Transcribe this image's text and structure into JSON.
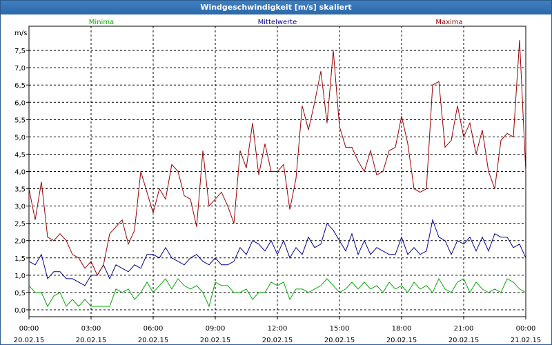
{
  "window": {
    "title": "Windgeschwindigkeit [m/s] skaliert"
  },
  "chart_data": {
    "type": "line",
    "title": "Windgeschwindigkeit [m/s] skaliert",
    "ylabel": "m/s",
    "ylim": [
      -0.2,
      8.2
    ],
    "yticks": [
      "0,0",
      "0,5",
      "1,0",
      "1,5",
      "2,0",
      "2,5",
      "3,0",
      "3,5",
      "4,0",
      "4,5",
      "5,0",
      "5,5",
      "6,0",
      "6,5",
      "7,0",
      "7,5"
    ],
    "ytick_values": [
      0,
      0.5,
      1,
      1.5,
      2,
      2.5,
      3,
      3.5,
      4,
      4.5,
      5,
      5.5,
      6,
      6.5,
      7,
      7.5
    ],
    "xlim": [
      0,
      24
    ],
    "xticks": [
      {
        "h": 0,
        "time": "00:00",
        "date": "20.02.15"
      },
      {
        "h": 3,
        "time": "03:00",
        "date": "20.02.15"
      },
      {
        "h": 6,
        "time": "06:00",
        "date": "20.02.15"
      },
      {
        "h": 9,
        "time": "09:00",
        "date": "20.02.15"
      },
      {
        "h": 12,
        "time": "12:00",
        "date": "20.02.15"
      },
      {
        "h": 15,
        "time": "15:00",
        "date": "20.02.15"
      },
      {
        "h": 18,
        "time": "18:00",
        "date": "20.02.15"
      },
      {
        "h": 21,
        "time": "21:00",
        "date": "20.02.15"
      },
      {
        "h": 24,
        "time": "00:00",
        "date": "21.02.15"
      }
    ],
    "grid": true,
    "legend_position": "top",
    "series": [
      {
        "name": "Minima",
        "color": "#00aa00",
        "x": [
          0,
          0.3,
          0.6,
          0.9,
          1.2,
          1.5,
          1.8,
          2.1,
          2.4,
          2.7,
          3.0,
          3.3,
          3.6,
          3.9,
          4.2,
          4.5,
          4.8,
          5.1,
          5.4,
          5.7,
          6.0,
          6.3,
          6.6,
          6.9,
          7.2,
          7.5,
          7.8,
          8.1,
          8.4,
          8.7,
          9.0,
          9.3,
          9.6,
          9.9,
          10.2,
          10.5,
          10.8,
          11.1,
          11.4,
          11.7,
          12.0,
          12.3,
          12.6,
          12.9,
          13.2,
          13.5,
          13.8,
          14.1,
          14.4,
          14.7,
          15.0,
          15.3,
          15.6,
          15.9,
          16.2,
          16.5,
          16.8,
          17.1,
          17.4,
          17.7,
          18.0,
          18.3,
          18.6,
          18.9,
          19.2,
          19.5,
          19.8,
          20.1,
          20.4,
          20.7,
          21.0,
          21.3,
          21.6,
          21.9,
          22.2,
          22.5,
          22.8,
          23.1,
          23.4,
          23.7,
          24.0
        ],
        "values": [
          0.7,
          0.5,
          0.5,
          0.1,
          0.4,
          0.5,
          0.1,
          0.3,
          0.1,
          0.3,
          0.1,
          0.1,
          0.1,
          0.1,
          0.6,
          0.5,
          0.6,
          0.3,
          0.5,
          0.8,
          0.5,
          0.7,
          0.9,
          0.6,
          0.9,
          0.7,
          0.6,
          0.7,
          0.5,
          0.1,
          0.8,
          0.7,
          0.7,
          0.5,
          0.5,
          0.6,
          0.3,
          0.5,
          0.5,
          0.8,
          0.7,
          0.8,
          0.3,
          0.6,
          0.6,
          0.5,
          0.6,
          0.7,
          0.9,
          0.7,
          0.5,
          0.6,
          0.8,
          0.6,
          0.8,
          0.6,
          0.7,
          0.5,
          0.8,
          0.6,
          0.7,
          0.5,
          0.8,
          0.6,
          0.7,
          0.5,
          0.9,
          0.6,
          0.5,
          0.8,
          0.9,
          0.5,
          0.8,
          0.6,
          0.5,
          0.6,
          0.5,
          0.9,
          0.8,
          0.6,
          0.5
        ]
      },
      {
        "name": "Mittelwerte",
        "color": "#00008b",
        "x": [
          0,
          0.3,
          0.6,
          0.9,
          1.2,
          1.5,
          1.8,
          2.1,
          2.4,
          2.7,
          3.0,
          3.3,
          3.6,
          3.9,
          4.2,
          4.5,
          4.8,
          5.1,
          5.4,
          5.7,
          6.0,
          6.3,
          6.6,
          6.9,
          7.2,
          7.5,
          7.8,
          8.1,
          8.4,
          8.7,
          9.0,
          9.3,
          9.6,
          9.9,
          10.2,
          10.5,
          10.8,
          11.1,
          11.4,
          11.7,
          12.0,
          12.3,
          12.6,
          12.9,
          13.2,
          13.5,
          13.8,
          14.1,
          14.4,
          14.7,
          15.0,
          15.3,
          15.6,
          15.9,
          16.2,
          16.5,
          16.8,
          17.1,
          17.4,
          17.7,
          18.0,
          18.3,
          18.6,
          18.9,
          19.2,
          19.5,
          19.8,
          20.1,
          20.4,
          20.7,
          21.0,
          21.3,
          21.6,
          21.9,
          22.2,
          22.5,
          22.8,
          23.1,
          23.4,
          23.7,
          24.0
        ],
        "values": [
          1.4,
          1.3,
          1.6,
          0.9,
          1.1,
          1.1,
          0.9,
          0.9,
          0.8,
          0.7,
          1.0,
          1.0,
          1.3,
          0.9,
          1.3,
          1.2,
          1.1,
          1.3,
          1.2,
          1.6,
          1.6,
          1.5,
          1.8,
          1.5,
          1.4,
          1.3,
          1.5,
          1.6,
          1.4,
          1.3,
          1.5,
          1.3,
          1.3,
          1.4,
          1.8,
          1.6,
          2.0,
          1.9,
          1.7,
          2.0,
          1.6,
          2.0,
          1.5,
          1.8,
          1.6,
          2.1,
          1.8,
          1.9,
          2.5,
          2.3,
          2.0,
          1.7,
          2.2,
          1.6,
          2.0,
          1.6,
          1.8,
          1.7,
          1.6,
          1.6,
          2.1,
          1.6,
          1.8,
          1.6,
          1.7,
          2.6,
          2.1,
          2.0,
          1.6,
          2.0,
          1.9,
          2.1,
          1.7,
          2.1,
          1.7,
          2.2,
          2.1,
          2.1,
          1.8,
          1.9,
          1.5
        ]
      },
      {
        "name": "Maxima",
        "color": "#990000",
        "x": [
          0,
          0.3,
          0.6,
          0.9,
          1.2,
          1.5,
          1.8,
          2.1,
          2.4,
          2.7,
          3.0,
          3.3,
          3.6,
          3.9,
          4.2,
          4.5,
          4.8,
          5.1,
          5.4,
          5.7,
          6.0,
          6.3,
          6.6,
          6.9,
          7.2,
          7.5,
          7.8,
          8.1,
          8.4,
          8.7,
          9.0,
          9.3,
          9.6,
          9.9,
          10.2,
          10.5,
          10.8,
          11.1,
          11.4,
          11.7,
          12.0,
          12.3,
          12.6,
          12.9,
          13.2,
          13.5,
          13.8,
          14.1,
          14.4,
          14.7,
          15.0,
          15.3,
          15.6,
          15.9,
          16.2,
          16.5,
          16.8,
          17.1,
          17.4,
          17.7,
          18.0,
          18.3,
          18.6,
          18.9,
          19.2,
          19.5,
          19.8,
          20.1,
          20.4,
          20.7,
          21.0,
          21.3,
          21.6,
          21.9,
          22.2,
          22.5,
          22.8,
          23.1,
          23.4,
          23.7,
          24.0
        ],
        "values": [
          3.5,
          2.6,
          3.7,
          2.1,
          2.0,
          2.2,
          2.0,
          1.6,
          1.5,
          1.2,
          1.4,
          1.0,
          1.3,
          2.2,
          2.4,
          2.6,
          1.9,
          2.3,
          4.0,
          3.4,
          2.8,
          3.5,
          3.2,
          4.2,
          4.0,
          3.3,
          3.2,
          2.4,
          4.6,
          3.0,
          3.2,
          3.4,
          3.0,
          2.5,
          4.6,
          4.1,
          5.4,
          3.9,
          4.8,
          4.0,
          4.0,
          4.2,
          2.9,
          3.8,
          5.9,
          5.2,
          6.0,
          6.9,
          5.4,
          7.5,
          5.3,
          4.7,
          4.7,
          4.3,
          4.0,
          4.6,
          3.9,
          4.0,
          4.6,
          4.7,
          5.6,
          4.8,
          3.5,
          3.4,
          3.5,
          6.5,
          6.6,
          4.7,
          4.9,
          5.9,
          5.0,
          5.4,
          4.5,
          5.2,
          4.0,
          3.5,
          4.9,
          5.1,
          5.0,
          7.8,
          4.0
        ]
      }
    ]
  }
}
